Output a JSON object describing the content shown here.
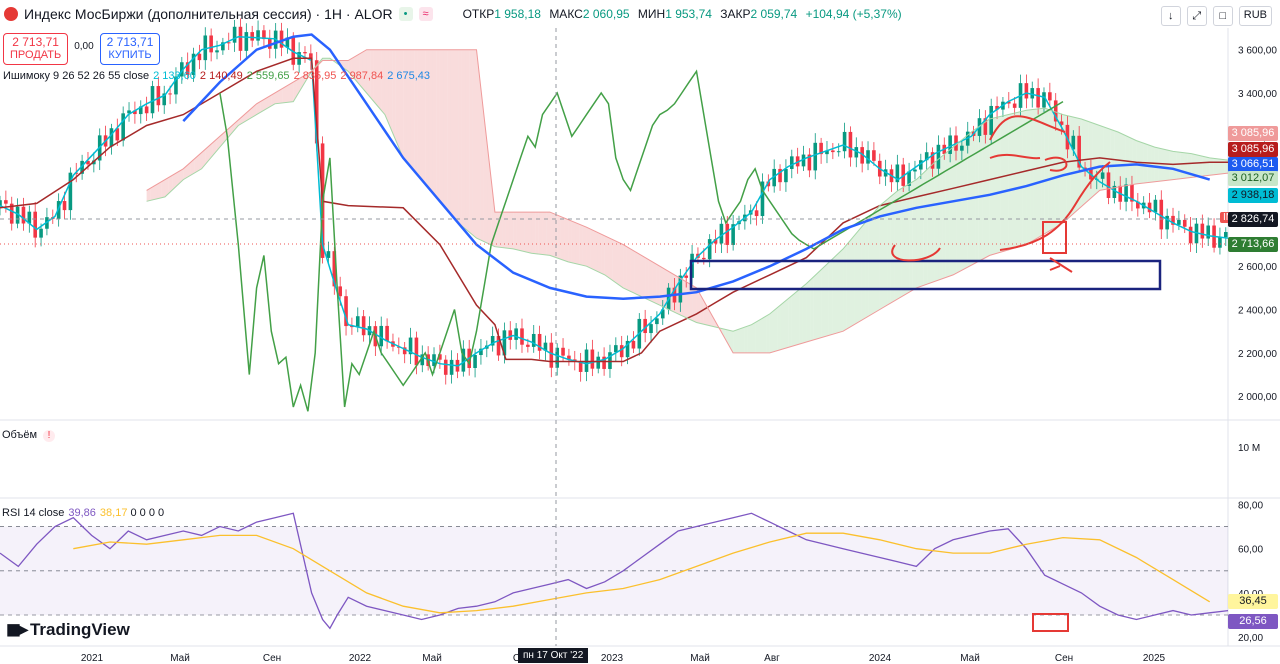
{
  "header": {
    "title": "Индекс МосБиржи (дополнительная сессия) · 1Н · ALOR",
    "open_label": "ОТКР",
    "open": "1 958,18",
    "high_label": "МАКС",
    "high": "2 060,95",
    "low_label": "МИН",
    "low": "1 953,74",
    "close_label": "ЗАКР",
    "close": "2 059,74",
    "change": "+104,94 (+5,37%)",
    "currency": "RUB"
  },
  "trade": {
    "sell_price": "2 713,71",
    "sell_label": "ПРОДАТЬ",
    "spread": "0,00",
    "buy_price": "2 713,71",
    "buy_label": "КУПИТЬ"
  },
  "ichimoku_legend": {
    "label": "Ишимоку 9 26 52 26 55 close",
    "v1": "2 133,60",
    "v2": "2 140,49",
    "v3": "2 559,65",
    "v4": "2 835,95",
    "v5": "2 987,84",
    "v6": "2 675,43"
  },
  "volume_label": "Объём",
  "rsi_legend": {
    "label": "RSI 14 close",
    "v1": "39,86",
    "v2": "38,17",
    "rest": "0 0 0 0"
  },
  "brand": "TradingView",
  "ticker_tag": "IMOEX",
  "crosshair_date": "пн 17 Окт '22",
  "price_tags": {
    "t1": "3 085,96",
    "t2": "3 085,96",
    "t3": "3 066,51",
    "t4": "3 012,07",
    "t5": "2 938,18",
    "t6": "2 826,74",
    "t7": "2 713,66"
  },
  "rsi_tags": {
    "t1": "36,45",
    "t2": "26,56"
  },
  "chart_data": {
    "type": "line",
    "title": "Индекс МосБиржи (дополнительная сессия) · 1Н · ALOR",
    "price_axis": {
      "ticks": [
        "3 600,00",
        "3 400,00",
        "3 200,00",
        "2 600,00",
        "2 400,00",
        "2 200,00",
        "2 000,00"
      ],
      "ylim": [
        1890,
        3700
      ]
    },
    "volume_axis": {
      "ticks": [
        "10 M"
      ]
    },
    "rsi_axis": {
      "ticks": [
        "80,00",
        "60,00",
        "40,00",
        "20,00"
      ],
      "ylim": [
        16,
        82
      ]
    },
    "time_axis": {
      "ticks": [
        "2021",
        "Май",
        "Сен",
        "2022",
        "Май",
        "Сен",
        "2023",
        "Май",
        "Авг",
        "2024",
        "Май",
        "Сен",
        "2025"
      ]
    },
    "series": [
      {
        "name": "Tenkan",
        "x": [
          0,
          5,
          10,
          15,
          20,
          25,
          30,
          35,
          40,
          45,
          50,
          55,
          60,
          65,
          70,
          75,
          80,
          85,
          88,
          92,
          95,
          100,
          105,
          110,
          115,
          120,
          125,
          130,
          135,
          140,
          145,
          150,
          155,
          160,
          165,
          170,
          175,
          180,
          185,
          190,
          195,
          200,
          205,
          210,
          215,
          220,
          225,
          230,
          235,
          240,
          245,
          250,
          255,
          260,
          265,
          270,
          275,
          280,
          285,
          290,
          295,
          300,
          305,
          310,
          315,
          320,
          325,
          330,
          335
        ],
        "y": [
          2880,
          2840,
          2770,
          2830,
          3020,
          3110,
          3200,
          3300,
          3350,
          3390,
          3510,
          3600,
          3620,
          3660,
          3655,
          3650,
          3590,
          3550,
          2700,
          2480,
          2330,
          2310,
          2260,
          2220,
          2180,
          2150,
          2140,
          2200,
          2250,
          2280,
          2250,
          2200,
          2170,
          2150,
          2170,
          2220,
          2300,
          2380,
          2520,
          2640,
          2720,
          2780,
          2850,
          3000,
          3060,
          3100,
          3130,
          3160,
          3120,
          3050,
          3000,
          3060,
          3120,
          3160,
          3200,
          3300,
          3360,
          3400,
          3380,
          3230,
          3060,
          2990,
          2940,
          2900,
          2850,
          2800,
          2760,
          2740,
          2730
        ]
      },
      {
        "name": "Kijun",
        "x": [
          0,
          10,
          20,
          30,
          40,
          50,
          60,
          70,
          80,
          85,
          88,
          95,
          110,
          120,
          130,
          135,
          138,
          145,
          150,
          160,
          170,
          175,
          180,
          190,
          195,
          200,
          210,
          220,
          230,
          240,
          250,
          260,
          270,
          280,
          290,
          300,
          310,
          320,
          330,
          335
        ],
        "y": [
          2870,
          2890,
          3000,
          3150,
          3250,
          3300,
          3400,
          3500,
          3560,
          3560,
          2900,
          2880,
          2870,
          2700,
          2420,
          2330,
          2170,
          2170,
          2160,
          2160,
          2160,
          2200,
          2300,
          2380,
          2430,
          2480,
          2560,
          2640,
          2800,
          2880,
          2920,
          2960,
          3000,
          3040,
          3080,
          3100,
          3080,
          3070,
          3080,
          3080
        ]
      },
      {
        "name": "Senkou A",
        "x": [
          40,
          45,
          50,
          55,
          60,
          65,
          70,
          75,
          80,
          85,
          88,
          90,
          95,
          100,
          105,
          110,
          115,
          120,
          125,
          130,
          135,
          140,
          145,
          150,
          155,
          160,
          165,
          170,
          175,
          180,
          185,
          190,
          195,
          200,
          205,
          210,
          215,
          220,
          225,
          230,
          235,
          240,
          245,
          250,
          255,
          260,
          265,
          270,
          275,
          280,
          285,
          290,
          295,
          300,
          305,
          310,
          315,
          320,
          325,
          330,
          335
        ],
        "y": [
          2900,
          2920,
          3000,
          3050,
          3150,
          3250,
          3300,
          3350,
          3360,
          3500,
          3560,
          3560,
          3500,
          3400,
          3300,
          3100,
          3000,
          2900,
          2800,
          2730,
          2690,
          2680,
          2660,
          2650,
          2620,
          2600,
          2560,
          2500,
          2460,
          2420,
          2380,
          2340,
          2320,
          2300,
          2330,
          2380,
          2450,
          2520,
          2600,
          2680,
          2780,
          2880,
          2950,
          3000,
          3080,
          3150,
          3220,
          3280,
          3300,
          3320,
          3330,
          3300,
          3280,
          3250,
          3220,
          3180,
          3150,
          3130,
          3120,
          3100,
          3090
        ]
      },
      {
        "name": "Senkou B",
        "x": [
          40,
          50,
          60,
          70,
          80,
          85,
          88,
          95,
          100,
          110,
          120,
          130,
          135,
          140,
          145,
          150,
          160,
          170,
          180,
          190,
          200,
          210,
          220,
          230,
          240,
          250,
          260,
          270,
          280,
          290,
          300,
          310,
          320,
          330,
          335
        ],
        "y": [
          2950,
          3050,
          3200,
          3350,
          3450,
          3500,
          3550,
          3550,
          3600,
          3600,
          3600,
          3600,
          2850,
          2850,
          2850,
          2850,
          2780,
          2700,
          2600,
          2500,
          2200,
          2200,
          2250,
          2300,
          2400,
          2500,
          2560,
          2650,
          2700,
          2800,
          2950,
          2980,
          3000,
          3020,
          3030
        ]
      },
      {
        "name": "Chikou",
        "x": [
          60,
          62,
          65,
          68,
          70,
          72,
          74,
          76,
          78,
          80,
          82,
          84,
          86,
          88,
          90,
          92,
          94,
          96,
          98,
          100,
          102,
          104,
          106,
          108,
          110,
          112,
          114,
          116,
          118,
          120,
          122,
          124,
          126,
          128,
          130,
          132,
          134,
          136,
          138,
          140,
          142,
          144,
          146,
          148,
          150,
          152,
          154,
          156,
          158,
          160,
          162,
          164,
          166,
          168,
          170,
          172,
          174,
          176,
          178,
          180,
          182,
          184,
          186,
          188,
          190,
          192,
          194,
          196,
          198,
          200,
          202,
          204,
          206,
          208,
          210,
          212,
          214,
          216,
          218,
          220,
          222,
          224,
          226,
          228,
          230,
          232,
          234,
          236,
          238,
          240,
          242,
          244,
          246,
          248,
          250,
          252,
          254,
          256,
          258,
          260,
          262,
          264,
          266,
          268,
          270,
          272,
          274,
          276,
          278,
          280,
          282,
          284,
          286,
          288,
          290
        ],
        "y": [
          3400,
          3200,
          2700,
          2100,
          2500,
          2650,
          2300,
          2150,
          2180,
          1950,
          2050,
          1930,
          2200,
          2900,
          3100,
          2500,
          1950,
          2150,
          2100,
          2200,
          2300,
          2200,
          2150,
          2100,
          2050,
          2100,
          2150,
          2200,
          2100,
          2200,
          2300,
          2400,
          2200,
          2150,
          2300,
          2500,
          2700,
          2800,
          2900,
          3000,
          3100,
          3200,
          3150,
          3300,
          3350,
          3400,
          3300,
          3200,
          3250,
          3300,
          3350,
          3400,
          3350,
          3100,
          3000,
          2950,
          3050,
          3150,
          3250,
          3300,
          3320,
          3350,
          3400,
          3450,
          3500,
          3300,
          3100,
          2900,
          2800,
          2850,
          2900,
          3000,
          3050,
          2950,
          2900,
          2850,
          2800,
          2750,
          2720,
          2700,
          2680,
          2700,
          2720,
          2740,
          2760,
          2780,
          2800,
          2820,
          2840,
          2860,
          2880,
          2900,
          2920,
          2940,
          2960,
          2980,
          3000,
          3020,
          3040,
          3060,
          3080,
          3100,
          3120,
          3140,
          3160,
          3180,
          3200,
          3220,
          3240,
          3260,
          3280,
          3300,
          3320,
          3340,
          3360
        ]
      },
      {
        "name": "SMA 55",
        "x": [
          50,
          60,
          70,
          80,
          85,
          90,
          100,
          110,
          120,
          130,
          140,
          150,
          160,
          170,
          180,
          190,
          200,
          210,
          220,
          230,
          240,
          250,
          260,
          270,
          280,
          290,
          300,
          310,
          320,
          330
        ],
        "y": [
          3270,
          3450,
          3600,
          3660,
          3670,
          3600,
          3350,
          3100,
          2900,
          2700,
          2570,
          2500,
          2460,
          2450,
          2460,
          2480,
          2530,
          2600,
          2680,
          2770,
          2830,
          2870,
          2900,
          2930,
          2970,
          3020,
          3060,
          3070,
          3050,
          3000
        ]
      }
    ],
    "rsi": {
      "name": "RSI 14",
      "x": [
        0,
        5,
        10,
        15,
        20,
        25,
        30,
        35,
        40,
        45,
        50,
        55,
        60,
        65,
        70,
        75,
        80,
        85,
        88,
        90,
        92,
        95,
        100,
        105,
        110,
        115,
        120,
        125,
        130,
        135,
        140,
        145,
        150,
        155,
        160,
        165,
        170,
        175,
        180,
        185,
        190,
        195,
        200,
        205,
        210,
        215,
        220,
        225,
        230,
        235,
        240,
        245,
        250,
        255,
        260,
        265,
        270,
        275,
        280,
        285,
        290,
        295,
        300,
        305,
        310,
        315,
        320,
        325,
        330,
        335
      ],
      "y": [
        58,
        52,
        62,
        70,
        74,
        66,
        60,
        68,
        64,
        66,
        68,
        66,
        70,
        68,
        72,
        74,
        76,
        40,
        28,
        24,
        30,
        38,
        34,
        32,
        30,
        28,
        30,
        33,
        34,
        36,
        40,
        42,
        44,
        46,
        42,
        45,
        50,
        56,
        62,
        68,
        70,
        72,
        74,
        76,
        72,
        68,
        64,
        62,
        60,
        58,
        56,
        54,
        52,
        60,
        64,
        66,
        68,
        69,
        60,
        48,
        44,
        40,
        34,
        30,
        28,
        30,
        32,
        30,
        31,
        32
      ]
    },
    "rsi_ma": {
      "name": "RSI MA",
      "x": [
        20,
        30,
        40,
        50,
        60,
        70,
        80,
        90,
        100,
        110,
        120,
        130,
        140,
        150,
        160,
        170,
        180,
        190,
        200,
        210,
        220,
        230,
        240,
        250,
        260,
        270,
        280,
        290,
        300,
        310,
        320,
        330
      ],
      "y": [
        60,
        63,
        62,
        64,
        66,
        66,
        60,
        50,
        40,
        34,
        31,
        32,
        34,
        37,
        40,
        42,
        46,
        52,
        58,
        63,
        67,
        67,
        64,
        60,
        58,
        58,
        62,
        65,
        64,
        56,
        46,
        36
      ]
    }
  }
}
